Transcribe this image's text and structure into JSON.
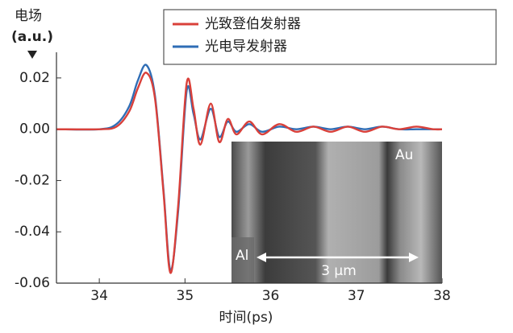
{
  "chart_data": {
    "type": "line",
    "y_label": "电场",
    "y_unit": "(a.u.)",
    "x_label": "时间(ps)",
    "x": [
      33.5,
      34.0,
      34.2,
      34.35,
      34.45,
      34.55,
      34.65,
      34.75,
      34.83,
      34.92,
      35.02,
      35.1,
      35.18,
      35.3,
      35.4,
      35.5,
      35.6,
      35.75,
      35.9,
      36.1,
      36.3,
      36.5,
      36.7,
      36.9,
      37.1,
      37.3,
      37.5,
      37.7,
      37.9,
      38.0
    ],
    "series": [
      {
        "name": "光致登伯发射器",
        "color": "#d9403a",
        "values": [
          0,
          0,
          0.001,
          0.007,
          0.016,
          0.022,
          0.012,
          -0.025,
          -0.056,
          -0.03,
          0.018,
          0.008,
          -0.006,
          0.01,
          -0.005,
          0.004,
          -0.002,
          0.003,
          -0.002,
          0.002,
          -0.001,
          0.001,
          -0.001,
          0.001,
          -0.001,
          0.001,
          0,
          0.001,
          0,
          0
        ]
      },
      {
        "name": "光电导发射器",
        "color": "#2f6db5",
        "values": [
          0,
          0,
          0.002,
          0.009,
          0.019,
          0.025,
          0.013,
          -0.024,
          -0.055,
          -0.032,
          0.015,
          0.006,
          -0.004,
          0.008,
          -0.003,
          0.003,
          -0.001,
          0.002,
          -0.001,
          0.001,
          0,
          0.001,
          0,
          0.001,
          0,
          0.001,
          0,
          0,
          0,
          0
        ]
      }
    ],
    "xlim": [
      33.5,
      38
    ],
    "xticks": [
      34,
      35,
      36,
      37,
      38
    ],
    "ylim": [
      -0.06,
      0.03
    ],
    "yticks": [
      {
        "value": 0.02,
        "label": "0.02"
      },
      {
        "value": 0,
        "label": "0.00"
      },
      {
        "value": -0.02,
        "label": "-0.02"
      },
      {
        "value": -0.04,
        "label": "-0.04"
      },
      {
        "value": -0.06,
        "label": "-0.06"
      }
    ],
    "legend": "upper right",
    "annotations": [
      "Au",
      "Al",
      "3 μm"
    ]
  }
}
